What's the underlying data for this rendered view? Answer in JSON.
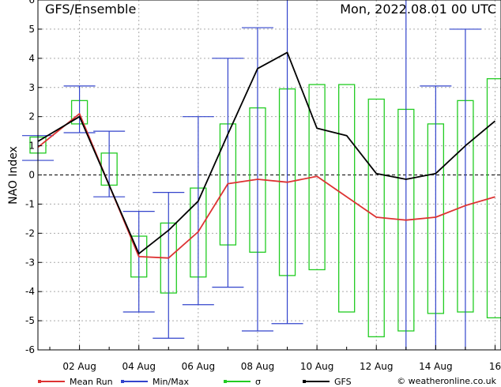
{
  "chart_data": {
    "type": "line",
    "title": "GFS/Ensemble",
    "date_label": "Mon, 2022.08.01   00 UTC",
    "ylabel": "NAO Index",
    "ylim": [
      -6,
      6
    ],
    "yticks": [
      -6,
      -5,
      -4,
      -3,
      -2,
      -1,
      0,
      1,
      2,
      3,
      4,
      5,
      6
    ],
    "xlim": [
      0.6,
      16.2
    ],
    "xticks": [
      {
        "day": 2,
        "label": "02 Aug"
      },
      {
        "day": 4,
        "label": "04 Aug"
      },
      {
        "day": 6,
        "label": "06 Aug"
      },
      {
        "day": 8,
        "label": "08 Aug"
      },
      {
        "day": 10,
        "label": "10 Aug"
      },
      {
        "day": 12,
        "label": "12 Aug"
      },
      {
        "day": 14,
        "label": "14 Aug"
      },
      {
        "day": 16,
        "label": "16"
      }
    ],
    "grid": true,
    "colors": {
      "mean": "#dd3333",
      "minmax": "#3344cc",
      "sigma": "#22cc22",
      "gfs": "#000000",
      "grid": "#aaaaaa"
    },
    "x": [
      0.6,
      1,
      2,
      3,
      4,
      5,
      6,
      7,
      8,
      9,
      10,
      11,
      12,
      13,
      14,
      15,
      16,
      16.2
    ],
    "series": [
      {
        "name": "Mean Run",
        "key": "mean",
        "values": [
          0.95,
          null,
          2.1,
          null,
          -2.8,
          -2.85,
          -1.95,
          -0.3,
          -0.15,
          -0.25,
          -0.05,
          null,
          -1.45,
          -1.55,
          -1.45,
          -1.05,
          -0.75,
          null
        ]
      },
      {
        "name": "GFS",
        "key": "gfs",
        "values": [
          1.15,
          null,
          2.0,
          null,
          -2.7,
          -1.9,
          -0.9,
          1.4,
          3.65,
          4.2,
          1.6,
          1.35,
          0.05,
          -0.15,
          0.05,
          1.0,
          1.85,
          null
        ]
      }
    ],
    "sigma_boxes": [
      {
        "x": 0.6,
        "low": 0.75,
        "high": 1.3
      },
      {
        "x": 2,
        "low": 1.75,
        "high": 2.55
      },
      {
        "x": 3,
        "low": -0.35,
        "high": 0.75
      },
      {
        "x": 4,
        "low": -3.5,
        "high": -2.1
      },
      {
        "x": 5,
        "low": -4.05,
        "high": -1.65
      },
      {
        "x": 6,
        "low": -3.5,
        "high": -0.45
      },
      {
        "x": 7,
        "low": -2.4,
        "high": 1.75
      },
      {
        "x": 8,
        "low": -2.65,
        "high": 2.3
      },
      {
        "x": 9,
        "low": -3.45,
        "high": 2.95
      },
      {
        "x": 10,
        "low": -3.25,
        "high": 3.1
      },
      {
        "x": 11,
        "low": -4.7,
        "high": 3.1
      },
      {
        "x": 12,
        "low": -5.55,
        "high": 2.6
      },
      {
        "x": 13,
        "low": -5.35,
        "high": 2.25
      },
      {
        "x": 14,
        "low": -4.75,
        "high": 1.75
      },
      {
        "x": 15,
        "low": -4.7,
        "high": 2.55
      },
      {
        "x": 16,
        "low": -4.9,
        "high": 3.3
      }
    ],
    "minmax_bars": [
      {
        "x": 0.6,
        "min": 0.5,
        "max": 1.35
      },
      {
        "x": 2,
        "min": 1.45,
        "max": 3.05
      },
      {
        "x": 3,
        "min": -0.75,
        "max": 1.5
      },
      {
        "x": 4,
        "min": -4.7,
        "max": -1.25
      },
      {
        "x": 5,
        "min": -5.6,
        "max": -0.6
      },
      {
        "x": 6,
        "min": -4.45,
        "max": 2.0
      },
      {
        "x": 7,
        "min": -3.85,
        "max": 4.0
      },
      {
        "x": 8,
        "min": -5.35,
        "max": 5.05
      },
      {
        "x": 9,
        "min": -5.1,
        "max": 6.0
      },
      {
        "x": 13,
        "min": -6.0,
        "max": 6.0
      },
      {
        "x": 14,
        "min": -6.0,
        "max": 3.05
      },
      {
        "x": 15,
        "min": -6.0,
        "max": 5.0
      }
    ],
    "legend": [
      {
        "key": "mean",
        "label": "Mean Run"
      },
      {
        "key": "minmax",
        "label": "Min/Max"
      },
      {
        "key": "sigma",
        "label": "σ"
      },
      {
        "key": "gfs",
        "label": "GFS"
      }
    ],
    "credit": "© weatheronline.co.uk"
  }
}
